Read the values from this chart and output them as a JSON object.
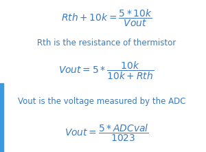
{
  "bg_color": "#ffffff",
  "text_color": "#3a7abf",
  "bar_color": "#3a9be0",
  "line1_eq": "$Rth + 10k = \\dfrac{5 * 10k}{Vout}$",
  "line2_text": "Rth is the resistance of thermistor",
  "line3_eq": "$Vout = 5 * \\dfrac{10k}{10k + Rth}$",
  "line4_text": "Vout is the voltage measured by the ADC",
  "line5_eq": "$Vout = \\dfrac{5 * ADCval}{1023}$",
  "fig_width": 3.0,
  "fig_height": 2.21,
  "dpi": 100,
  "eq_fontsize": 10,
  "txt_fontsize": 8.5
}
